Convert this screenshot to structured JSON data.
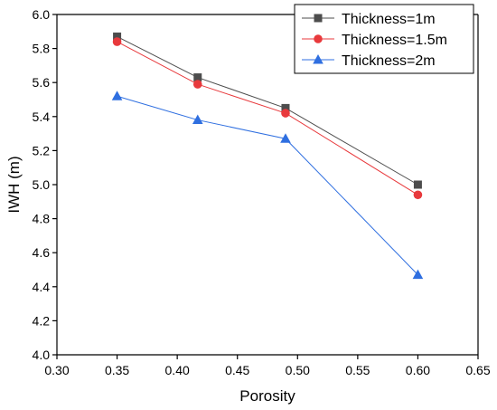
{
  "chart_data": {
    "type": "line",
    "xlabel": "Porosity",
    "ylabel": "IWH (m)",
    "xlim": [
      0.3,
      0.65
    ],
    "ylim": [
      4.0,
      6.0
    ],
    "x_ticks": [
      "0.30",
      "0.35",
      "0.40",
      "0.45",
      "0.50",
      "0.55",
      "0.60",
      "0.65"
    ],
    "y_ticks": [
      "4.0",
      "4.2",
      "4.4",
      "4.6",
      "4.8",
      "5.0",
      "5.2",
      "5.4",
      "5.6",
      "5.8",
      "6.0"
    ],
    "x": [
      0.35,
      0.417,
      0.49,
      0.6
    ],
    "legend_position": "top-right",
    "grid": false,
    "series": [
      {
        "name": "Thickness=1m",
        "values": [
          5.87,
          5.63,
          5.45,
          5.0
        ],
        "color": "#4d4d4d",
        "marker": "square"
      },
      {
        "name": "Thickness=1.5m",
        "values": [
          5.84,
          5.59,
          5.42,
          4.94
        ],
        "color": "#e8393c",
        "marker": "circle"
      },
      {
        "name": "Thickness=2m",
        "values": [
          5.52,
          5.38,
          5.27,
          4.47
        ],
        "color": "#2f6fe0",
        "marker": "triangle"
      }
    ]
  }
}
